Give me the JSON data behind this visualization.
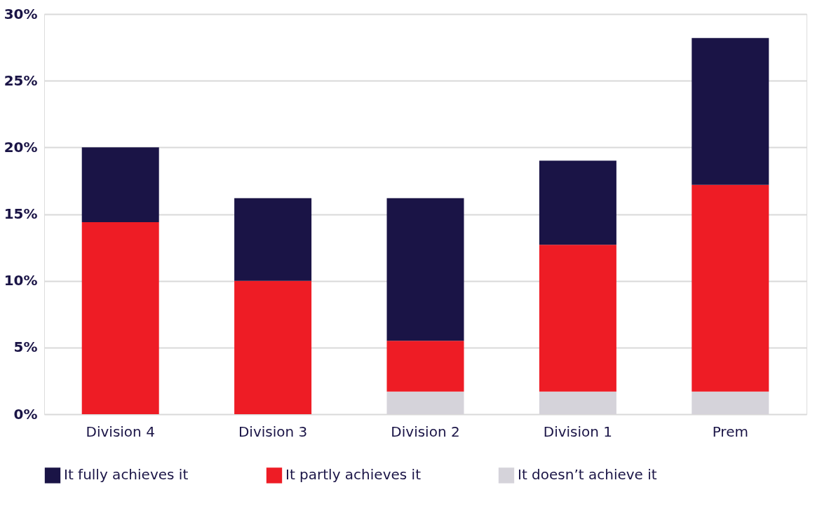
{
  "chart_data": {
    "type": "bar",
    "stacked": true,
    "categories": [
      "Division 4",
      "Division 3",
      "Division 2",
      "Division 1",
      "Prem"
    ],
    "series": [
      {
        "name": "It doesn’t achieve it",
        "color": "#d5d3da",
        "values": [
          0,
          0,
          1.7,
          1.7,
          1.7
        ]
      },
      {
        "name": "It partly achieves it",
        "color": "#ee1c25",
        "values": [
          14.4,
          10.0,
          3.8,
          11.0,
          15.5
        ]
      },
      {
        "name": "It fully achieves it",
        "color": "#1a1446",
        "values": [
          5.6,
          6.2,
          10.7,
          6.3,
          11.0
        ]
      }
    ],
    "ylim": [
      0,
      30
    ],
    "yticks": [
      {
        "value": 0,
        "label": "0%"
      },
      {
        "value": 5,
        "label": "5%"
      },
      {
        "value": 10,
        "label": "10%"
      },
      {
        "value": 15,
        "label": "15%"
      },
      {
        "value": 20,
        "label": "20%"
      },
      {
        "value": 25,
        "label": "25%"
      },
      {
        "value": 30,
        "label": "30%"
      }
    ],
    "grid": "y",
    "legend": "bottom"
  }
}
